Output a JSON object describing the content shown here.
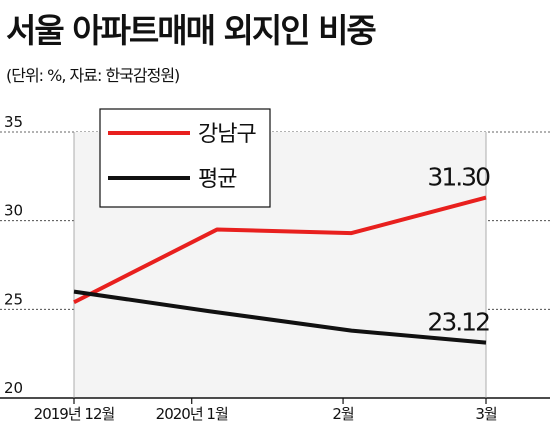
{
  "title": "서울 아파트매매 외지인 비중",
  "subtitle": "(단위: %, 자료: 한국감정원)",
  "chart_data": {
    "type": "line",
    "title": "서울 아파트매매 외지인 비중",
    "subtitle": "(단위: %, 자료: 한국감정원)",
    "categories": [
      "2019년 12월",
      "2020년 1월",
      "2월",
      "3월"
    ],
    "x_positions": [
      0,
      1.4,
      3.2,
      4.9
    ],
    "series": [
      {
        "name": "강남구",
        "color": "#e8201e",
        "x": [
          0,
          1.7,
          3.3,
          4.9
        ],
        "values": [
          25.4,
          29.5,
          29.3,
          31.3
        ],
        "end_label": "31.30"
      },
      {
        "name": "평균",
        "color": "#111111",
        "x": [
          0,
          1.6,
          3.3,
          4.9
        ],
        "values": [
          26.0,
          24.9,
          23.8,
          23.12
        ],
        "end_label": "23.12"
      }
    ],
    "xlim": [
      0,
      4.9
    ],
    "ylim": [
      20,
      35
    ],
    "yticks": [
      "20",
      "25",
      "30",
      "35"
    ],
    "grid": true,
    "legend_position": "top-center"
  }
}
